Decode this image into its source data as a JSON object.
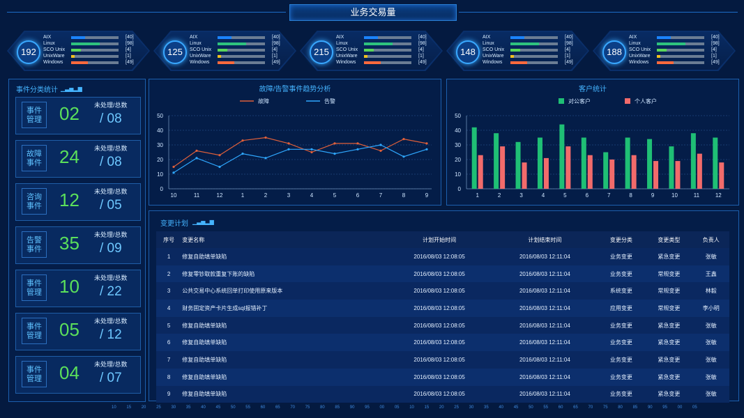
{
  "title": "业务交易量",
  "server_cards": [
    {
      "total": "192",
      "rows": [
        {
          "name": "AIX",
          "count": "[40]",
          "pct": 0.3,
          "color": "#1b84ff"
        },
        {
          "name": "Linux",
          "count": "[98]",
          "pct": 0.6,
          "color": "#2ec27e"
        },
        {
          "name": "SCO Unix",
          "count": "[4]",
          "pct": 0.2,
          "color": "#5bd65b"
        },
        {
          "name": "UnixWare",
          "count": "[1]",
          "pct": 0.08,
          "color": "#f0c020"
        },
        {
          "name": "Windows",
          "count": "[49]",
          "pct": 0.35,
          "color": "#ff6a3d"
        }
      ]
    },
    {
      "total": "125",
      "rows": [
        {
          "name": "AIX",
          "count": "[40]",
          "pct": 0.3,
          "color": "#1b84ff"
        },
        {
          "name": "Linux",
          "count": "[98]",
          "pct": 0.6,
          "color": "#2ec27e"
        },
        {
          "name": "SCO Unix",
          "count": "[4]",
          "pct": 0.2,
          "color": "#5bd65b"
        },
        {
          "name": "UnixWare",
          "count": "[1]",
          "pct": 0.08,
          "color": "#f0c020"
        },
        {
          "name": "Windows",
          "count": "[49]",
          "pct": 0.35,
          "color": "#ff6a3d"
        }
      ]
    },
    {
      "total": "215",
      "rows": [
        {
          "name": "AIX",
          "count": "[40]",
          "pct": 0.3,
          "color": "#1b84ff"
        },
        {
          "name": "Linux",
          "count": "[98]",
          "pct": 0.6,
          "color": "#2ec27e"
        },
        {
          "name": "SCO Unix",
          "count": "[4]",
          "pct": 0.2,
          "color": "#5bd65b"
        },
        {
          "name": "UnixWare",
          "count": "[1]",
          "pct": 0.08,
          "color": "#f0c020"
        },
        {
          "name": "Windows",
          "count": "[49]",
          "pct": 0.35,
          "color": "#ff6a3d"
        }
      ]
    },
    {
      "total": "148",
      "rows": [
        {
          "name": "AIX",
          "count": "[40]",
          "pct": 0.3,
          "color": "#1b84ff"
        },
        {
          "name": "Linux",
          "count": "[98]",
          "pct": 0.6,
          "color": "#2ec27e"
        },
        {
          "name": "SCO Unix",
          "count": "[4]",
          "pct": 0.2,
          "color": "#5bd65b"
        },
        {
          "name": "UnixWare",
          "count": "[1]",
          "pct": 0.08,
          "color": "#f0c020"
        },
        {
          "name": "Windows",
          "count": "[49]",
          "pct": 0.35,
          "color": "#ff6a3d"
        }
      ]
    },
    {
      "total": "188",
      "rows": [
        {
          "name": "AIX",
          "count": "[40]",
          "pct": 0.3,
          "color": "#1b84ff"
        },
        {
          "name": "Linux",
          "count": "[98]",
          "pct": 0.6,
          "color": "#2ec27e"
        },
        {
          "name": "SCO Unix",
          "count": "[4]",
          "pct": 0.2,
          "color": "#5bd65b"
        },
        {
          "name": "UnixWare",
          "count": "[1]",
          "pct": 0.08,
          "color": "#f0c020"
        },
        {
          "name": "Windows",
          "count": "[49]",
          "pct": 0.35,
          "color": "#ff6a3d"
        }
      ]
    }
  ],
  "event_panel": {
    "title": "事件分类统计",
    "caption": "未处理/总数",
    "items": [
      {
        "l1": "事件",
        "l2": "管理",
        "num": "02",
        "total": "/ 08"
      },
      {
        "l1": "故障",
        "l2": "事件",
        "num": "24",
        "total": "/ 08"
      },
      {
        "l1": "咨询",
        "l2": "事件",
        "num": "12",
        "total": "/ 05"
      },
      {
        "l1": "告警",
        "l2": "事件",
        "num": "35",
        "total": "/ 09"
      },
      {
        "l1": "事件",
        "l2": "管理",
        "num": "10",
        "total": "/ 22"
      },
      {
        "l1": "事件",
        "l2": "管理",
        "num": "05",
        "total": "/ 12"
      },
      {
        "l1": "事件",
        "l2": "管理",
        "num": "04",
        "total": "/ 07"
      }
    ]
  },
  "line_panel": {
    "title": "故障/告警事件趋势分析"
  },
  "bar_panel": {
    "title": "客户统计"
  },
  "chart_data": [
    {
      "type": "line",
      "title": "故障/告警事件趋势分析",
      "categories": [
        "10",
        "11",
        "12",
        "1",
        "2",
        "3",
        "4",
        "5",
        "6",
        "7",
        "8",
        "9"
      ],
      "ylim": [
        0,
        50
      ],
      "yticks": [
        "0",
        "10",
        "20",
        "30",
        "40",
        "50"
      ],
      "legend_position": "top",
      "series": [
        {
          "name": "故障",
          "color": "#e0603a",
          "values": [
            15,
            26,
            23,
            33,
            35,
            31,
            25,
            31,
            31,
            26,
            34,
            31
          ]
        },
        {
          "name": "告警",
          "color": "#2fa8ff",
          "values": [
            11,
            21,
            15,
            24,
            21,
            27,
            27,
            24,
            27,
            30,
            22,
            27
          ]
        }
      ]
    },
    {
      "type": "bar",
      "title": "客户统计",
      "categories": [
        "1",
        "2",
        "3",
        "4",
        "5",
        "6",
        "7",
        "8",
        "9",
        "10",
        "11",
        "12"
      ],
      "ylim": [
        0,
        50
      ],
      "yticks": [
        "0",
        "10",
        "20",
        "30",
        "40",
        "50"
      ],
      "legend_position": "top",
      "series": [
        {
          "name": "对公客户",
          "color": "#1fbf75",
          "values": [
            42,
            38,
            32,
            35,
            44,
            35,
            25,
            35,
            34,
            29,
            38,
            35
          ]
        },
        {
          "name": "个人客户",
          "color": "#f26b6b",
          "values": [
            23,
            29,
            18,
            21,
            29,
            23,
            20,
            23,
            19,
            19,
            24,
            18
          ]
        }
      ]
    }
  ],
  "change_plan": {
    "title": "变更计划",
    "headers": [
      "序号",
      "变更名称",
      "计划开始时间",
      "计划结束时间",
      "变更分类",
      "变更类型",
      "负责人"
    ],
    "rows": [
      [
        "1",
        "修复自助填单缺陷",
        "2016/08/03 12:08:05",
        "2016/08/03 12:11:04",
        "业务变更",
        "紧急变更",
        "张敏"
      ],
      [
        "2",
        "修复零钞取款重复下账的缺陷",
        "2016/08/03 12:08:05",
        "2016/08/03 12:11:04",
        "业务变更",
        "常规变更",
        "王鑫"
      ],
      [
        "3",
        "公共交易中心系统回单打印使用原来版本",
        "2016/08/03 12:08:05",
        "2016/08/03 12:11:04",
        "系统变更",
        "常规变更",
        "林毅"
      ],
      [
        "4",
        "财务固定资产卡片生成sql报错补丁",
        "2016/08/03 12:08:05",
        "2016/08/03 12:11:04",
        "应用变更",
        "常规变更",
        "李小明"
      ],
      [
        "5",
        "修复自助填单缺陷",
        "2016/08/03 12:08:05",
        "2016/08/03 12:11:04",
        "业务变更",
        "紧急变更",
        "张敏"
      ],
      [
        "6",
        "修复自助填单缺陷",
        "2016/08/03 12:08:05",
        "2016/08/03 12:11:04",
        "业务变更",
        "紧急变更",
        "张敏"
      ],
      [
        "7",
        "修复自助填单缺陷",
        "2016/08/03 12:08:05",
        "2016/08/03 12:11:04",
        "业务变更",
        "紧急变更",
        "张敏"
      ],
      [
        "8",
        "修复自助填单缺陷",
        "2016/08/03 12:08:05",
        "2016/08/03 12:11:04",
        "业务变更",
        "紧急变更",
        "张敏"
      ],
      [
        "9",
        "修复自助填单缺陷",
        "2016/08/03 12:08:05",
        "2016/08/03 12:11:04",
        "业务变更",
        "紧急变更",
        "张敏"
      ]
    ]
  },
  "bottom_ruler": [
    "10",
    "15",
    "20",
    "25",
    "30",
    "35",
    "40",
    "45",
    "50",
    "55",
    "60",
    "65",
    "70",
    "75",
    "80",
    "85",
    "90",
    "95",
    "00",
    "05",
    "10",
    "15",
    "20",
    "25",
    "30",
    "35",
    "40",
    "45",
    "50",
    "55",
    "60",
    "65",
    "70",
    "75",
    "80",
    "85",
    "90",
    "95",
    "00",
    "05"
  ]
}
